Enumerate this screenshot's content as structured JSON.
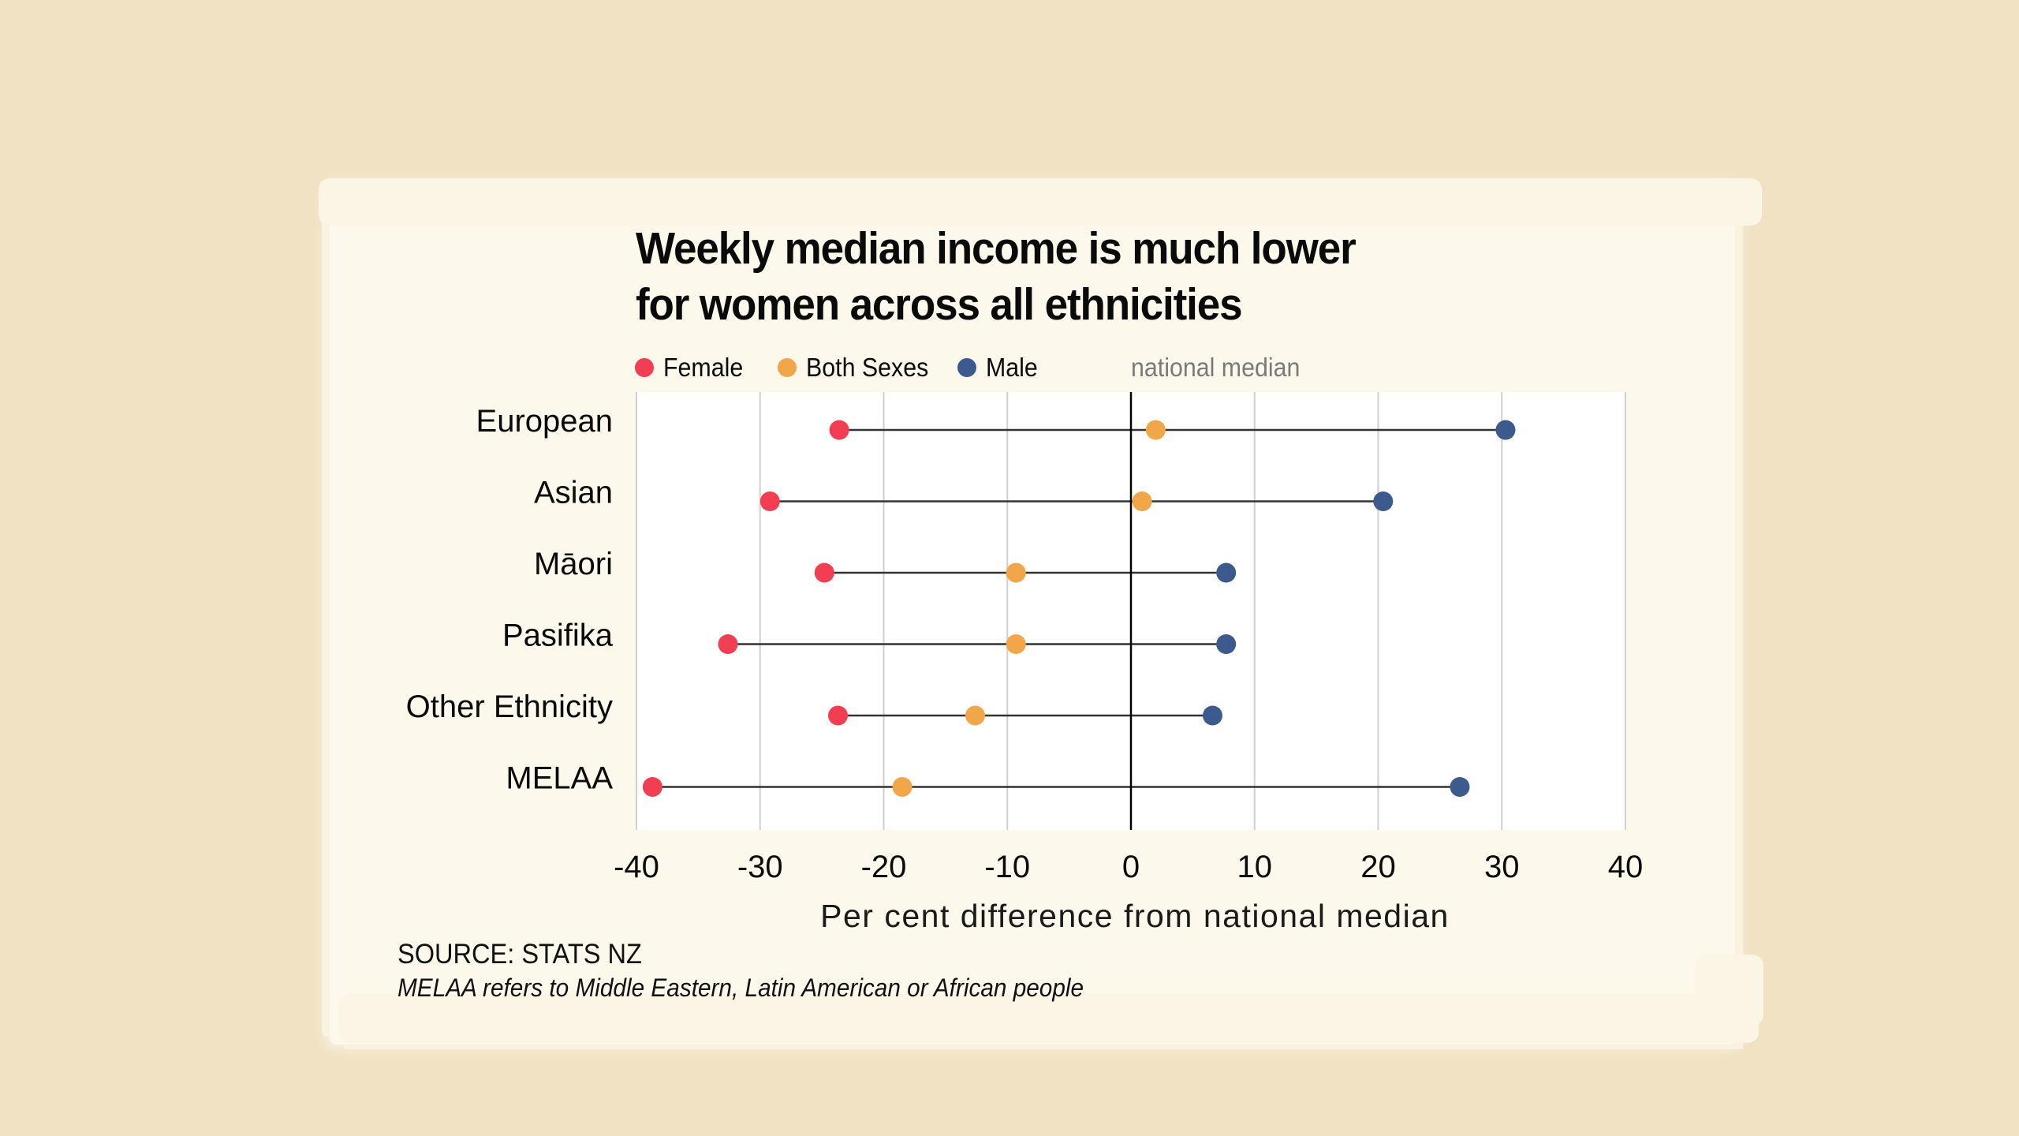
{
  "chart_data": {
    "type": "dot-range",
    "title": "Weekly median income is much lower for women across all ethnicities",
    "title_lines": [
      "Weekly median income is much lower",
      "for women across all ethnicities"
    ],
    "xlabel": "Per cent difference from national median",
    "ylabel": "",
    "xlim": [
      -40,
      40
    ],
    "x_ticks": [
      -40,
      -30,
      -20,
      -10,
      0,
      10,
      20,
      30,
      40
    ],
    "x_tick_labels": [
      "-40",
      "-30",
      "-20",
      "-10",
      "0",
      "10",
      "20",
      "30",
      "40"
    ],
    "grid": "vertical",
    "reference_line": {
      "value": 0,
      "label": "national median"
    },
    "legend_position": "top-left",
    "categories": [
      "European",
      "Asian",
      "Māori",
      "Pasifika",
      "Other Ethnicity",
      "MELAA"
    ],
    "series": [
      {
        "name": "Female",
        "color": "#f23e52",
        "values": [
          -23.6,
          -29.2,
          -24.8,
          -32.6,
          -23.7,
          -38.7
        ]
      },
      {
        "name": "Both Sexes",
        "color": "#f2a64a",
        "values": [
          2.0,
          0.9,
          -9.3,
          -9.3,
          -12.6,
          -18.5
        ]
      },
      {
        "name": "Male",
        "color": "#3d5a8e",
        "values": [
          30.3,
          20.4,
          7.7,
          7.7,
          6.6,
          26.6
        ]
      }
    ]
  },
  "legend": {
    "items": [
      {
        "label": "Female",
        "color": "#f23e52"
      },
      {
        "label": "Both Sexes",
        "color": "#f2a64a"
      },
      {
        "label": "Male",
        "color": "#3d5a8e"
      }
    ],
    "note": "national median"
  },
  "footer": {
    "source": "SOURCE: STATS NZ",
    "note": "MELAA refers to Middle Eastern, Latin American or African people"
  },
  "colors": {
    "background": "#f2e2c4",
    "paper": "#fcf8ec",
    "plot_background": "#ffffff",
    "gridline": "#d0d0d0",
    "connector": "#333333",
    "zero_line": "#000000"
  }
}
